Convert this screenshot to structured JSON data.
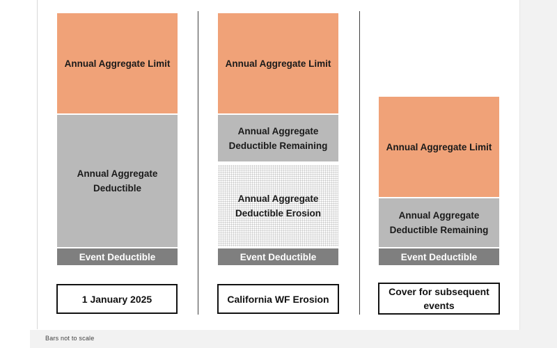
{
  "footnote": "Bars not to scale",
  "colors": {
    "limit_fill": "#F0A278",
    "deductible_fill": "#B9B9B9",
    "erosion_fill": "dotted-light-gray",
    "event_fill": "#7F7F7F",
    "event_text": "#FFFFFF",
    "divider": "#3F3F3F",
    "margin_background": "#F2F2F2",
    "caption_border": "#111111"
  },
  "panels": [
    {
      "caption": "1 January 2025",
      "segments": [
        {
          "label": "Annual Aggregate Limit",
          "style": "limit"
        },
        {
          "label": "Annual Aggregate Deductible",
          "style": "deductible"
        },
        {
          "label": "Event Deductible",
          "style": "event"
        }
      ]
    },
    {
      "caption": "California WF Erosion",
      "segments": [
        {
          "label": "Annual Aggregate Limit",
          "style": "limit"
        },
        {
          "label": "Annual Aggregate Deductible Remaining",
          "style": "deductible"
        },
        {
          "label": "Annual Aggregate Deductible Erosion",
          "style": "erosion-dotted"
        },
        {
          "label": "Event Deductible",
          "style": "event"
        }
      ]
    },
    {
      "caption": "Cover for subsequent events",
      "segments": [
        {
          "label": "Annual Aggregate Limit",
          "style": "limit"
        },
        {
          "label": "Annual Aggregate Deductible Remaining",
          "style": "deductible"
        },
        {
          "label": "Event Deductible",
          "style": "event"
        }
      ]
    }
  ]
}
